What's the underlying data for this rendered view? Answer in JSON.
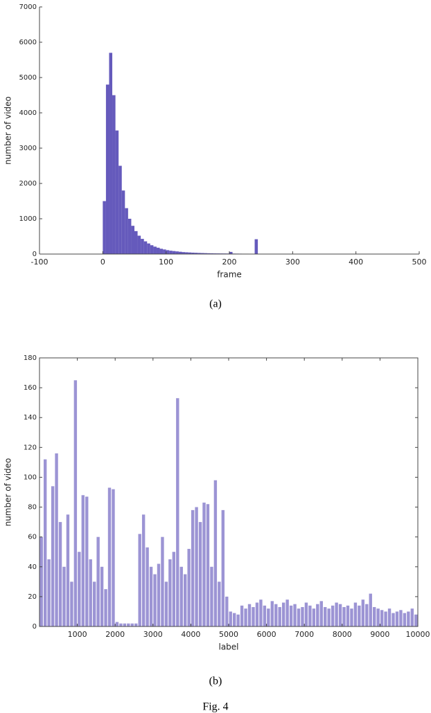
{
  "chart_data": [
    {
      "type": "histogram",
      "caption": "(a)",
      "xlabel": "frame",
      "ylabel": "number of video",
      "color": "#4a3db0",
      "bins": [
        0,
        5,
        10,
        15,
        20,
        25,
        30,
        35,
        40,
        45,
        50,
        55,
        60,
        65,
        70,
        75,
        80,
        85,
        90,
        95,
        100,
        105,
        110,
        115,
        120,
        125,
        130,
        135,
        140,
        145,
        150,
        155,
        160,
        165,
        170,
        175,
        180,
        185,
        190,
        195,
        200,
        205,
        210,
        215,
        220,
        225,
        230,
        235,
        240,
        245
      ],
      "values": [
        1500,
        4800,
        5700,
        4500,
        3500,
        2500,
        1800,
        1300,
        1000,
        800,
        650,
        520,
        430,
        360,
        300,
        250,
        210,
        180,
        150,
        130,
        110,
        95,
        85,
        75,
        65,
        55,
        50,
        45,
        40,
        36,
        32,
        29,
        26,
        23,
        21,
        19,
        18,
        17,
        16,
        15,
        60,
        13,
        12,
        11,
        10,
        10,
        9,
        9,
        420
      ],
      "xlim": [
        -100,
        500
      ],
      "xticks": [
        -100,
        0,
        100,
        200,
        300,
        400,
        500
      ],
      "ylim": [
        0,
        7000
      ],
      "yticks": [
        0,
        1000,
        2000,
        3000,
        4000,
        5000,
        6000,
        7000
      ]
    },
    {
      "type": "bar",
      "caption": "(b)",
      "xlabel": "label",
      "ylabel": "number of video",
      "color": "#4a3db0",
      "x": [
        50,
        150,
        250,
        350,
        450,
        550,
        650,
        750,
        850,
        950,
        1050,
        1150,
        1250,
        1350,
        1450,
        1550,
        1650,
        1750,
        1850,
        1950,
        2050,
        2150,
        2250,
        2350,
        2450,
        2550,
        2650,
        2750,
        2850,
        2950,
        3050,
        3150,
        3250,
        3350,
        3450,
        3550,
        3650,
        3750,
        3850,
        3950,
        4050,
        4150,
        4250,
        4350,
        4450,
        4550,
        4650,
        4750,
        4850,
        4950,
        5050,
        5150,
        5250,
        5350,
        5450,
        5550,
        5650,
        5750,
        5850,
        5950,
        6050,
        6150,
        6250,
        6350,
        6450,
        6550,
        6650,
        6750,
        6850,
        6950,
        7050,
        7150,
        7250,
        7350,
        7450,
        7550,
        7650,
        7750,
        7850,
        7950,
        8050,
        8150,
        8250,
        8350,
        8450,
        8550,
        8650,
        8750,
        8850,
        8950,
        9050,
        9150,
        9250,
        9350,
        9450,
        9550,
        9650,
        9750,
        9850,
        9950
      ],
      "values": [
        60,
        112,
        45,
        94,
        116,
        70,
        40,
        75,
        30,
        165,
        50,
        88,
        87,
        45,
        30,
        60,
        40,
        25,
        93,
        92,
        3,
        2,
        2,
        2,
        2,
        2,
        62,
        75,
        53,
        40,
        35,
        42,
        60,
        30,
        45,
        50,
        153,
        40,
        35,
        52,
        78,
        80,
        70,
        83,
        82,
        40,
        98,
        30,
        78,
        20,
        10,
        9,
        8,
        14,
        12,
        15,
        13,
        16,
        18,
        14,
        12,
        17,
        15,
        13,
        16,
        18,
        14,
        15,
        12,
        13,
        16,
        14,
        12,
        15,
        17,
        13,
        12,
        14,
        16,
        15,
        13,
        14,
        12,
        16,
        14,
        18,
        15,
        22,
        13,
        12,
        11,
        10,
        12,
        9,
        10,
        11,
        9,
        10,
        12,
        8
      ],
      "xlim": [
        0,
        10000
      ],
      "xticks": [
        1000,
        2000,
        3000,
        4000,
        5000,
        6000,
        7000,
        8000,
        9000,
        10000
      ],
      "ylim": [
        0,
        180
      ],
      "yticks": [
        0,
        20,
        40,
        60,
        80,
        100,
        120,
        140,
        160,
        180
      ]
    }
  ],
  "caption": "Fig. 4"
}
